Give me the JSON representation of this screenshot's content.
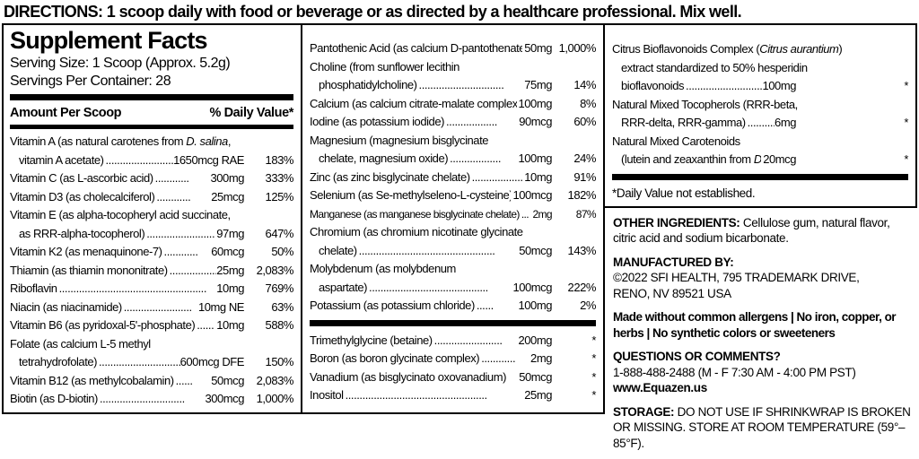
{
  "directions": "DIRECTIONS: 1 scoop daily with food or beverage or as directed by a healthcare professional. Mix well.",
  "supplement_facts": {
    "title": "Supplement Facts",
    "serving_size": "Serving Size: 1 Scoop (Approx. 5.2g)",
    "servings_per_container": "Servings Per Container: 28",
    "amount_header": "Amount Per Scoop",
    "dv_header": "% Daily Value*",
    "dv_footnote": "*Daily Value not established.",
    "left_rows": [
      {
        "lines": [
          {
            "text": "Vitamin A (as natural carotenes from {D. salina},"
          },
          {
            "text": "vitamin A acetate)",
            "indent": true,
            "dots": "........................",
            "amount": "1650mcg RAE",
            "dv": "183%"
          }
        ]
      },
      {
        "lines": [
          {
            "text": "Vitamin C (as L-ascorbic acid)",
            "dots": "............",
            "amount": "300mg",
            "dv": "333%"
          }
        ]
      },
      {
        "lines": [
          {
            "text": "Vitamin D3 (as cholecalciferol)",
            "dots": "............",
            "amount": "25mcg",
            "dv": "125%"
          }
        ]
      },
      {
        "lines": [
          {
            "text": "Vitamin E (as alpha-tocopheryl acid succinate,"
          },
          {
            "text": "as RRR-alpha-tocopherol)",
            "indent": true,
            "dots": "........................",
            "amount": "97mg",
            "dv": "647%"
          }
        ]
      },
      {
        "lines": [
          {
            "text": "Vitamin K2 (as menaquinone-7)",
            "dots": "............",
            "amount": "60mcg",
            "dv": "50%"
          }
        ]
      },
      {
        "lines": [
          {
            "text": "Thiamin (as thiamin mononitrate)",
            "dots": "..................",
            "amount": "25mg",
            "dv": "2,083%"
          }
        ]
      },
      {
        "lines": [
          {
            "text": "Riboflavin",
            "dots": "....................................................",
            "amount": "10mg",
            "dv": "769%"
          }
        ]
      },
      {
        "lines": [
          {
            "text": "Niacin (as niacinamide)",
            "dots": "........................",
            "amount": "10mg NE",
            "dv": "63%"
          }
        ]
      },
      {
        "lines": [
          {
            "text": "Vitamin B6 (as pyridoxal-5'-phosphate)",
            "dots": "......",
            "amount": "10mg",
            "dv": "588%"
          }
        ]
      },
      {
        "lines": [
          {
            "text": "Folate (as calcium L-5 methyl"
          },
          {
            "text": "tetrahydrofolate)",
            "indent": true,
            "dots": "..............................",
            "amount": "600mcg DFE",
            "dv": "150%"
          }
        ]
      },
      {
        "lines": [
          {
            "text": "Vitamin B12 (as methylcobalamin)",
            "dots": "......",
            "amount": "50mcg",
            "dv": "2,083%"
          }
        ]
      },
      {
        "lines": [
          {
            "text": "Biotin (as D-biotin)",
            "dots": "..............................",
            "amount": "300mcg",
            "dv": "1,000%"
          }
        ]
      }
    ],
    "middle_rows": [
      {
        "lines": [
          {
            "text": "Pantothenic Acid (as calcium D-pantothenate)",
            "amount": "50mg",
            "dv": "1,000%"
          }
        ]
      },
      {
        "lines": [
          {
            "text": "Choline (from sunflower lecithin"
          },
          {
            "text": "phosphatidylcholine)",
            "indent": true,
            "dots": "..............................",
            "amount": "75mg",
            "dv": "14%"
          }
        ]
      },
      {
        "lines": [
          {
            "text": "Calcium (as calcium citrate-malate complex)",
            "amount": "100mg",
            "dv": "8%"
          }
        ]
      },
      {
        "lines": [
          {
            "text": "Iodine (as potassium iodide)",
            "dots": "..................",
            "amount": "90mcg",
            "dv": "60%"
          }
        ]
      },
      {
        "lines": [
          {
            "text": "Magnesium (magnesium bisglycinate"
          },
          {
            "text": "chelate, magnesium oxide)",
            "indent": true,
            "dots": "..................",
            "amount": "100mg",
            "dv": "24%"
          }
        ]
      },
      {
        "lines": [
          {
            "text": "Zinc (as zinc bisglycinate chelate)",
            "dots": "..................",
            "amount": "10mg",
            "dv": "91%"
          }
        ]
      },
      {
        "lines": [
          {
            "text": "Selenium (as Se-methylseleno-L-cysteine)",
            "amount": "100mcg",
            "dv": "182%"
          }
        ]
      },
      {
        "condensed": true,
        "lines": [
          {
            "text": "Manganese (as manganese bisglycinate chelate)",
            "dots": "...",
            "amount": "2mg",
            "dv": "87%"
          }
        ]
      },
      {
        "lines": [
          {
            "text": "Chromium (as chromium nicotinate glycinate"
          },
          {
            "text": "chelate)",
            "indent": true,
            "dots": "................................................",
            "amount": "50mcg",
            "dv": "143%"
          }
        ]
      },
      {
        "lines": [
          {
            "text": "Molybdenum (as molybdenum"
          },
          {
            "text": "aspartate)",
            "indent": true,
            "dots": "..........................................",
            "amount": "100mcg",
            "dv": "222%"
          }
        ]
      },
      {
        "lines": [
          {
            "text": "Potassium (as potassium chloride)",
            "dots": "......",
            "amount": "100mg",
            "dv": "2%"
          }
        ]
      }
    ],
    "middle_rows_2": [
      {
        "lines": [
          {
            "text": "Trimethylglycine (betaine)",
            "dots": "........................",
            "amount": "200mg",
            "dv": "*"
          }
        ]
      },
      {
        "lines": [
          {
            "text": "Boron (as boron glycinate complex)",
            "dots": "............",
            "amount": "2mg",
            "dv": "*"
          }
        ]
      },
      {
        "lines": [
          {
            "text": "Vanadium (as bisglycinato oxovanadium)",
            "amount": "50mcg",
            "dv": "*"
          }
        ]
      },
      {
        "lines": [
          {
            "text": "Inositol",
            "dots": "..................................................",
            "amount": "25mg",
            "dv": "*"
          }
        ]
      }
    ],
    "right_rows": [
      {
        "lines": [
          {
            "text": "Citrus Bioflavonoids Complex ({Citrus aurantium})"
          },
          {
            "text": "extract standardized to 50% hesperidin",
            "indent": true
          },
          {
            "text": "bioflavonoids",
            "indent": true,
            "dots": "................................................",
            "amount": "100mg",
            "dv": "*"
          }
        ]
      },
      {
        "lines": [
          {
            "text": "Natural Mixed Tocopherols (RRR-beta,"
          },
          {
            "text": "RRR-delta, RRR-gamma)",
            "indent": true,
            "dots": "........................",
            "amount": "6mg",
            "dv": "*"
          }
        ]
      },
      {
        "lines": [
          {
            "text": "Natural Mixed Carotenoids"
          },
          {
            "text": "(lutein and zeaxanthin from {D. salina})",
            "indent": true,
            "dots": "......",
            "amount": "20mcg",
            "dv": "*"
          }
        ]
      }
    ]
  },
  "info": {
    "other_ingredients": {
      "label": "OTHER INGREDIENTS:",
      "text": "Cellulose gum, natural flavor, citric acid and sodium bicarbonate."
    },
    "manufactured_by": {
      "label": "MANUFACTURED BY:",
      "line1": "©2022 SFI HEALTH, 795 TRADEMARK DRIVE,",
      "line2": "RENO, NV 89521 USA"
    },
    "claims": "Made without common allergens | No iron, copper, or herbs | No synthetic colors or sweeteners",
    "questions": {
      "label": "QUESTIONS OR COMMENTS?",
      "phone": "1-888-488-2488 (M - F 7:30 AM - 4:00 PM PST)",
      "website": "www.Equazen.us"
    },
    "storage": {
      "label": "STORAGE:",
      "text": "DO NOT USE IF SHRINKWRAP IS BROKEN OR MISSING. STORE AT ROOM TEMPERATURE (59°– 85°F)."
    }
  }
}
